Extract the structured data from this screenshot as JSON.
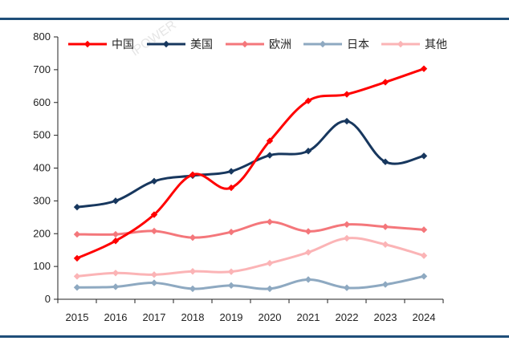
{
  "watermark": "iPOWER",
  "chart_data": {
    "type": "line",
    "title": "",
    "xlabel": "",
    "ylabel": "",
    "x": [
      "2015",
      "2016",
      "2017",
      "2018",
      "2019",
      "2020",
      "2021",
      "2022",
      "2023",
      "2024"
    ],
    "ylim": [
      0,
      800
    ],
    "yticks": [
      "0",
      "100",
      "200",
      "300",
      "400",
      "500",
      "600",
      "700",
      "800"
    ],
    "grid": false,
    "legend_position": "top",
    "series": [
      {
        "name": "中国",
        "color": "#ff0000",
        "values": [
          125,
          178,
          258,
          380,
          340,
          483,
          605,
          625,
          662,
          703
        ]
      },
      {
        "name": "美国",
        "color": "#17375e",
        "values": [
          281,
          300,
          360,
          377,
          390,
          439,
          452,
          543,
          419,
          437
        ]
      },
      {
        "name": "欧洲",
        "color": "#f4777b",
        "values": [
          198,
          198,
          208,
          188,
          205,
          236,
          207,
          228,
          221,
          212
        ]
      },
      {
        "name": "日本",
        "color": "#8ea9c1",
        "values": [
          36,
          38,
          50,
          32,
          42,
          32,
          60,
          35,
          45,
          70
        ]
      },
      {
        "name": "其他",
        "color": "#fbb4b6",
        "values": [
          70,
          80,
          75,
          85,
          84,
          110,
          143,
          186,
          167,
          133
        ]
      }
    ]
  }
}
